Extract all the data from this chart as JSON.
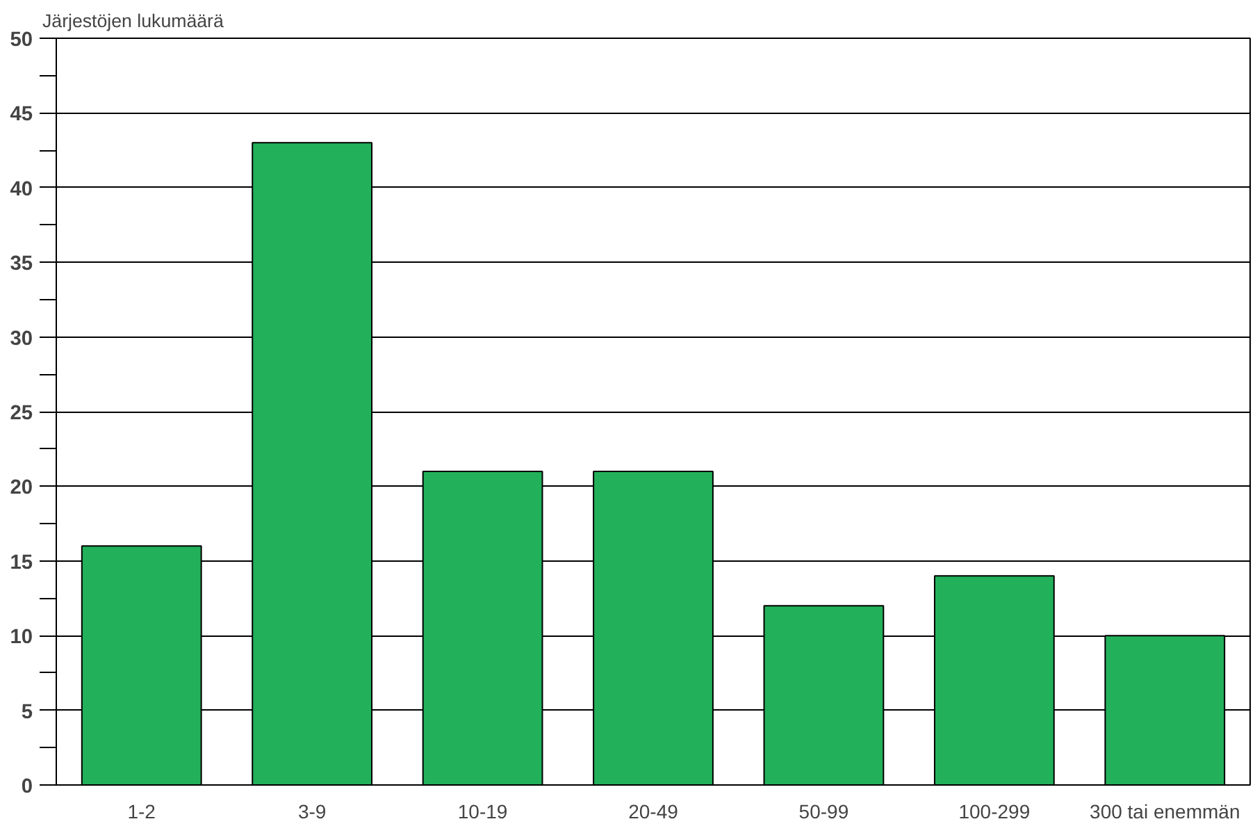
{
  "chart_data": {
    "type": "bar",
    "ylabel": "Järjestöjen lukumäärä",
    "categories": [
      "1-2",
      "3-9",
      "10-19",
      "20-49",
      "50-99",
      "100-299",
      "300 tai enemmän"
    ],
    "values": [
      16,
      43,
      21,
      21,
      12,
      14,
      10
    ],
    "color": "#22b05a",
    "ylim": [
      0,
      50
    ],
    "yticks": [
      0,
      {
        "value": 2.5,
        "label": null
      },
      5,
      {
        "value": 7.5,
        "label": null
      },
      10,
      {
        "value": 12.5,
        "label": null
      },
      15,
      {
        "value": 17.5,
        "label": null
      },
      20,
      {
        "value": 22.5,
        "label": null
      },
      25,
      {
        "value": 27.5,
        "label": null
      },
      30,
      {
        "value": 32.5,
        "label": null
      },
      35,
      {
        "value": 37.5,
        "label": null
      },
      40,
      {
        "value": 42.5,
        "label": null
      },
      45,
      {
        "value": 47.5,
        "label": null
      },
      50
    ],
    "grid": "y"
  }
}
